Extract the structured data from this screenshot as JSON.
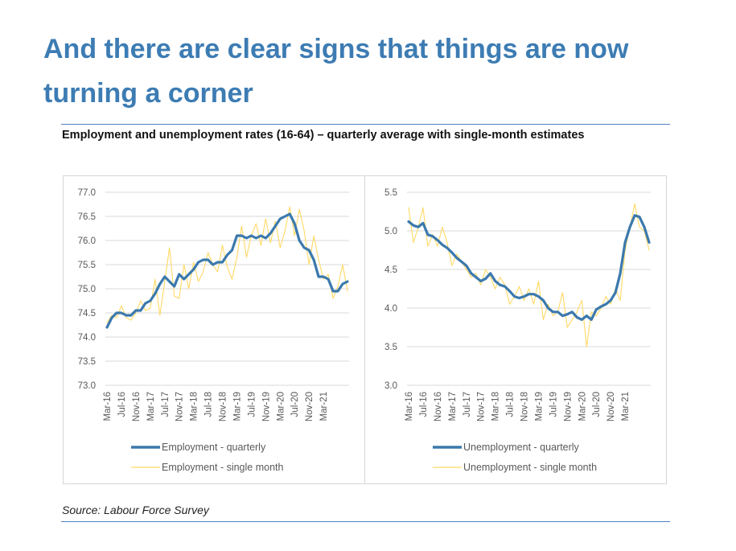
{
  "title": "And there are clear signs that things are now turning a corner",
  "chart_heading": "Employment and unemployment rates (16-64) – quarterly average with single-month estimates",
  "source": "Source: Labour Force Survey",
  "colors": {
    "title": "#3d7cb3",
    "quarterly": "#3b79ad",
    "single_month": "#ffd966",
    "rule": "#4f81bd"
  },
  "chart_data": [
    {
      "type": "line",
      "title": "",
      "xlabel": "",
      "ylabel": "",
      "ylim": [
        73.0,
        77.0
      ],
      "yticks": [
        "77.0",
        "76.5",
        "76.0",
        "75.5",
        "75.0",
        "74.5",
        "74.0",
        "73.5",
        "73.0"
      ],
      "xticks": [
        "Mar-16",
        "Jul-16",
        "Nov-16",
        "Mar-17",
        "Jul-17",
        "Nov-17",
        "Mar-18",
        "Jul-18",
        "Nov-18",
        "Mar-19",
        "Jul-19",
        "Nov-19",
        "Mar-20",
        "Jul-20",
        "Nov-20",
        "Mar-21"
      ],
      "grid": true,
      "legend": "bottom",
      "series": [
        {
          "name": "Employment - quarterly",
          "values": [
            74.2,
            74.4,
            74.5,
            74.5,
            74.45,
            74.45,
            74.55,
            74.55,
            74.7,
            74.75,
            74.9,
            75.1,
            75.25,
            75.15,
            75.05,
            75.3,
            75.2,
            75.3,
            75.4,
            75.55,
            75.6,
            75.6,
            75.5,
            75.55,
            75.55,
            75.7,
            75.8,
            76.1,
            76.1,
            76.05,
            76.1,
            76.05,
            76.1,
            76.05,
            76.15,
            76.3,
            76.45,
            76.5,
            76.55,
            76.35,
            76.0,
            75.85,
            75.8,
            75.6,
            75.25,
            75.25,
            75.2,
            74.95,
            74.95,
            75.1,
            75.15
          ]
        },
        {
          "name": "Employment - single month",
          "values": [
            74.3,
            74.45,
            74.4,
            74.65,
            74.4,
            74.35,
            74.5,
            74.75,
            74.55,
            74.6,
            75.2,
            74.45,
            75.15,
            75.85,
            74.85,
            74.8,
            75.5,
            75.0,
            75.55,
            75.15,
            75.35,
            75.75,
            75.5,
            75.35,
            75.9,
            75.45,
            75.2,
            75.65,
            76.3,
            75.65,
            76.1,
            76.35,
            75.9,
            76.45,
            75.95,
            76.4,
            75.85,
            76.2,
            76.7,
            76.1,
            76.65,
            76.2,
            75.5,
            76.1,
            75.6,
            75.2,
            75.3,
            74.8,
            75.05,
            75.5,
            74.95
          ]
        }
      ]
    },
    {
      "type": "line",
      "title": "",
      "xlabel": "",
      "ylabel": "",
      "ylim": [
        3.0,
        5.5
      ],
      "yticks": [
        "5.5",
        "5.0",
        "4.5",
        "4.0",
        "3.5",
        "3.0"
      ],
      "xticks": [
        "Mar-16",
        "Jul-16",
        "Nov-16",
        "Mar-17",
        "Jul-17",
        "Nov-17",
        "Mar-18",
        "Jul-18",
        "Nov-18",
        "Mar-19",
        "Jul-19",
        "Nov-19",
        "Mar-20",
        "Jul-20",
        "Nov-20",
        "Mar-21"
      ],
      "grid": true,
      "legend": "bottom",
      "series": [
        {
          "name": "Unemployment - quarterly",
          "values": [
            5.12,
            5.07,
            5.05,
            5.1,
            4.95,
            4.93,
            4.88,
            4.82,
            4.78,
            4.72,
            4.65,
            4.6,
            4.55,
            4.45,
            4.4,
            4.35,
            4.38,
            4.45,
            4.35,
            4.3,
            4.28,
            4.22,
            4.15,
            4.13,
            4.15,
            4.18,
            4.18,
            4.15,
            4.1,
            4.0,
            3.95,
            3.95,
            3.9,
            3.92,
            3.95,
            3.88,
            3.85,
            3.9,
            3.85,
            3.98,
            4.02,
            4.05,
            4.1,
            4.2,
            4.45,
            4.85,
            5.05,
            5.2,
            5.18,
            5.05,
            4.85
          ]
        },
        {
          "name": "Unemployment - single month",
          "values": [
            5.3,
            4.85,
            5.05,
            5.3,
            4.8,
            4.95,
            4.8,
            5.05,
            4.85,
            4.55,
            4.7,
            4.6,
            4.5,
            4.4,
            4.45,
            4.3,
            4.5,
            4.4,
            4.25,
            4.4,
            4.3,
            4.05,
            4.15,
            4.28,
            4.1,
            4.25,
            4.05,
            4.35,
            3.85,
            4.05,
            3.9,
            3.95,
            4.2,
            3.75,
            3.85,
            3.95,
            4.1,
            3.5,
            3.95,
            3.9,
            4.0,
            4.15,
            4.05,
            4.25,
            4.1,
            4.75,
            5.05,
            5.35,
            5.05,
            5.0,
            4.75
          ]
        }
      ]
    }
  ]
}
